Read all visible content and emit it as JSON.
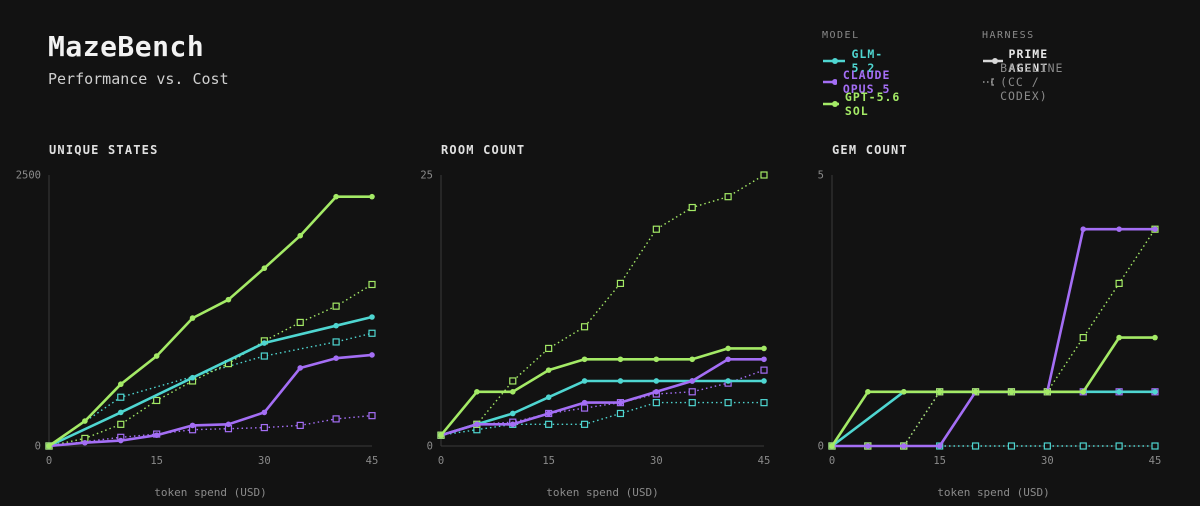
{
  "header": {
    "title": "MazeBench",
    "subtitle": "Performance vs. Cost"
  },
  "legend": {
    "model_heading": "MODEL",
    "harness_heading": "HARNESS",
    "models": [
      {
        "name": "GLM-5.2",
        "color": "#4fd6d1"
      },
      {
        "name": "CLAUDE OPUS 5",
        "color": "#a46ef5"
      },
      {
        "name": "GPT-5.6 SOL",
        "color": "#a4ea66"
      }
    ],
    "harnesses": [
      {
        "name": "PRIME AGENT",
        "style": "solid-circle"
      },
      {
        "name": "BASELINE (CC / CODEX)",
        "style": "dotted-square"
      }
    ]
  },
  "chart_data": [
    {
      "type": "line",
      "title": "UNIQUE STATES",
      "xlabel": "token spend (USD)",
      "ylabel": "",
      "xlim": [
        0,
        45
      ],
      "ylim": [
        0,
        2500
      ],
      "xticks": [
        "0",
        "15",
        "30",
        "45"
      ],
      "yticks": [
        "0",
        "2500"
      ],
      "series": [
        {
          "model": "GLM-5.2",
          "harness": "PRIME AGENT",
          "color": "#4fd6d1",
          "x": [
            0,
            10,
            20,
            30,
            40,
            45
          ],
          "y": [
            0,
            310,
            630,
            950,
            1110,
            1190
          ]
        },
        {
          "model": "GLM-5.2",
          "harness": "BASELINE (CC / CODEX)",
          "color": "#4fd6d1",
          "x": [
            0,
            10,
            30,
            40,
            45
          ],
          "y": [
            0,
            450,
            830,
            960,
            1040
          ]
        },
        {
          "model": "CLAUDE OPUS 5",
          "harness": "PRIME AGENT",
          "color": "#a46ef5",
          "x": [
            0,
            5,
            10,
            15,
            20,
            25,
            30,
            35,
            40,
            45
          ],
          "y": [
            0,
            30,
            50,
            100,
            190,
            200,
            310,
            720,
            810,
            840
          ]
        },
        {
          "model": "CLAUDE OPUS 5",
          "harness": "BASELINE (CC / CODEX)",
          "color": "#a46ef5",
          "x": [
            0,
            10,
            15,
            20,
            25,
            30,
            35,
            40,
            45
          ],
          "y": [
            0,
            80,
            110,
            150,
            160,
            170,
            190,
            250,
            280
          ]
        },
        {
          "model": "GPT-5.6 SOL",
          "harness": "PRIME AGENT",
          "color": "#a4ea66",
          "x": [
            0,
            5,
            10,
            15,
            20,
            25,
            30,
            35,
            40,
            45
          ],
          "y": [
            0,
            230,
            570,
            830,
            1180,
            1350,
            1640,
            1940,
            2300,
            2300
          ]
        },
        {
          "model": "GPT-5.6 SOL",
          "harness": "BASELINE (CC / CODEX)",
          "color": "#a4ea66",
          "x": [
            0,
            5,
            10,
            15,
            20,
            25,
            30,
            35,
            40,
            45
          ],
          "y": [
            0,
            70,
            200,
            420,
            600,
            760,
            970,
            1140,
            1290,
            1490
          ]
        }
      ]
    },
    {
      "type": "line",
      "title": "ROOM COUNT",
      "xlabel": "token spend (USD)",
      "ylabel": "",
      "xlim": [
        0,
        45
      ],
      "ylim": [
        0,
        25
      ],
      "xticks": [
        "0",
        "15",
        "30",
        "45"
      ],
      "yticks": [
        "0",
        "25"
      ],
      "series": [
        {
          "model": "GLM-5.2",
          "harness": "PRIME AGENT",
          "color": "#4fd6d1",
          "x": [
            0,
            5,
            10,
            15,
            20,
            25,
            30,
            35,
            40,
            45
          ],
          "y": [
            1,
            2,
            3,
            4.5,
            6,
            6,
            6,
            6,
            6,
            6
          ]
        },
        {
          "model": "GLM-5.2",
          "harness": "BASELINE (CC / CODEX)",
          "color": "#4fd6d1",
          "x": [
            0,
            5,
            10,
            15,
            20,
            25,
            30,
            35,
            40,
            45
          ],
          "y": [
            1,
            1.5,
            2,
            2,
            2,
            3,
            4,
            4,
            4,
            4
          ]
        },
        {
          "model": "CLAUDE OPUS 5",
          "harness": "PRIME AGENT",
          "color": "#a46ef5",
          "x": [
            0,
            5,
            10,
            15,
            20,
            25,
            30,
            35,
            40,
            45
          ],
          "y": [
            1,
            2,
            2,
            3,
            4,
            4,
            5,
            6,
            8,
            8
          ]
        },
        {
          "model": "CLAUDE OPUS 5",
          "harness": "BASELINE (CC / CODEX)",
          "color": "#a46ef5",
          "x": [
            0,
            5,
            10,
            15,
            20,
            25,
            30,
            35,
            40,
            45
          ],
          "y": [
            1,
            2,
            2.2,
            3,
            3.5,
            4,
            4.8,
            5,
            5.8,
            7
          ]
        },
        {
          "model": "GPT-5.6 SOL",
          "harness": "PRIME AGENT",
          "color": "#a4ea66",
          "x": [
            0,
            5,
            10,
            15,
            20,
            25,
            30,
            35,
            40,
            45
          ],
          "y": [
            1,
            5,
            5,
            7,
            8,
            8,
            8,
            8,
            9,
            9
          ]
        },
        {
          "model": "GPT-5.6 SOL",
          "harness": "BASELINE (CC / CODEX)",
          "color": "#a4ea66",
          "x": [
            0,
            5,
            10,
            15,
            20,
            25,
            30,
            35,
            40,
            45
          ],
          "y": [
            1,
            2,
            6,
            9,
            11,
            15,
            20,
            22,
            23,
            25
          ]
        }
      ]
    },
    {
      "type": "line",
      "title": "GEM COUNT",
      "xlabel": "token spend (USD)",
      "ylabel": "",
      "xlim": [
        0,
        45
      ],
      "ylim": [
        0,
        5
      ],
      "xticks": [
        "0",
        "15",
        "30",
        "45"
      ],
      "yticks": [
        "0",
        "5"
      ],
      "series": [
        {
          "model": "GLM-5.2",
          "harness": "PRIME AGENT",
          "color": "#4fd6d1",
          "x": [
            0,
            10,
            15,
            20,
            25,
            30,
            35,
            40,
            45
          ],
          "y": [
            0,
            1,
            1,
            1,
            1,
            1,
            1,
            1,
            1
          ]
        },
        {
          "model": "GLM-5.2",
          "harness": "BASELINE (CC / CODEX)",
          "color": "#4fd6d1",
          "x": [
            0,
            5,
            10,
            15,
            20,
            25,
            30,
            35,
            40,
            45
          ],
          "y": [
            0,
            0,
            0,
            0,
            0,
            0,
            0,
            0,
            0,
            0
          ]
        },
        {
          "model": "CLAUDE OPUS 5",
          "harness": "PRIME AGENT",
          "color": "#a46ef5",
          "x": [
            0,
            5,
            10,
            15,
            20,
            25,
            30,
            35,
            40,
            45
          ],
          "y": [
            0,
            0,
            0,
            0,
            1,
            1,
            1,
            4,
            4,
            4
          ]
        },
        {
          "model": "CLAUDE OPUS 5",
          "harness": "BASELINE (CC / CODEX)",
          "color": "#a46ef5",
          "x": [
            0,
            5,
            10,
            15,
            20,
            25,
            30,
            35,
            40,
            45
          ],
          "y": [
            0,
            0,
            0,
            1,
            1,
            1,
            1,
            1,
            1,
            1
          ]
        },
        {
          "model": "GPT-5.6 SOL",
          "harness": "PRIME AGENT",
          "color": "#a4ea66",
          "x": [
            0,
            5,
            10,
            15,
            20,
            25,
            30,
            35,
            40,
            45
          ],
          "y": [
            0,
            1,
            1,
            1,
            1,
            1,
            1,
            1,
            2,
            2
          ]
        },
        {
          "model": "GPT-5.6 SOL",
          "harness": "BASELINE (CC / CODEX)",
          "color": "#a4ea66",
          "x": [
            0,
            5,
            10,
            15,
            20,
            25,
            30,
            35,
            40,
            45
          ],
          "y": [
            0,
            0,
            0,
            1,
            1,
            1,
            1,
            2,
            3,
            4
          ]
        }
      ]
    }
  ]
}
